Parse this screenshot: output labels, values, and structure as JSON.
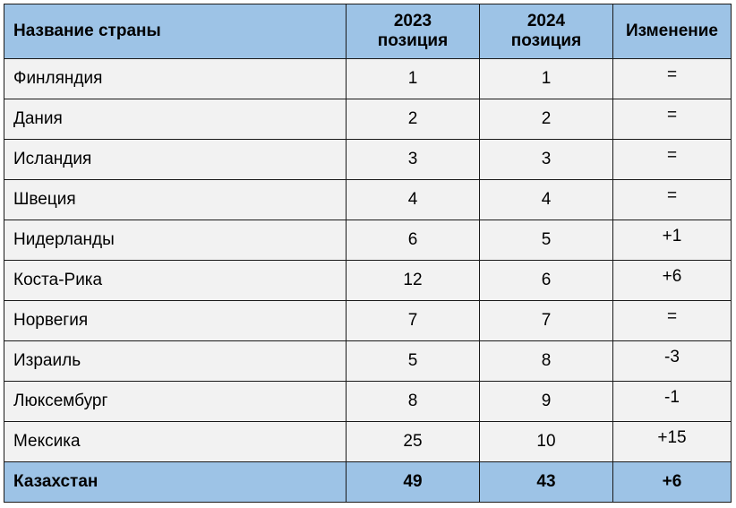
{
  "table": {
    "headers": {
      "country": "Название страны",
      "y2023_line1": "2023",
      "y2023_line2": "позиция",
      "y2024_line1": "2024",
      "y2024_line2": "позиция",
      "change": "Изменение"
    },
    "rows": [
      {
        "country": "Финляндия",
        "y2023": "1",
        "y2024": "1",
        "change": "="
      },
      {
        "country": "Дания",
        "y2023": "2",
        "y2024": "2",
        "change": "="
      },
      {
        "country": "Исландия",
        "y2023": "3",
        "y2024": "3",
        "change": "="
      },
      {
        "country": "Швеция",
        "y2023": "4",
        "y2024": "4",
        "change": "="
      },
      {
        "country": "Нидерланды",
        "y2023": "6",
        "y2024": "5",
        "change": "+1"
      },
      {
        "country": "Коста-Рика",
        "y2023": "12",
        "y2024": "6",
        "change": "+6"
      },
      {
        "country": "Норвегия",
        "y2023": "7",
        "y2024": "7",
        "change": "="
      },
      {
        "country": "Израиль",
        "y2023": "5",
        "y2024": "8",
        "change": "-3"
      },
      {
        "country": "Люксембург",
        "y2023": "8",
        "y2024": "9",
        "change": "-1"
      },
      {
        "country": "Мексика",
        "y2023": "25",
        "y2024": "10",
        "change": "+15"
      }
    ],
    "footer": {
      "country": "Казахстан",
      "y2023": "49",
      "y2024": "43",
      "change": "+6"
    },
    "colors": {
      "header_bg": "#9dc3e6",
      "row_bg": "#f2f2f2",
      "border": "#1a1a1a"
    }
  }
}
